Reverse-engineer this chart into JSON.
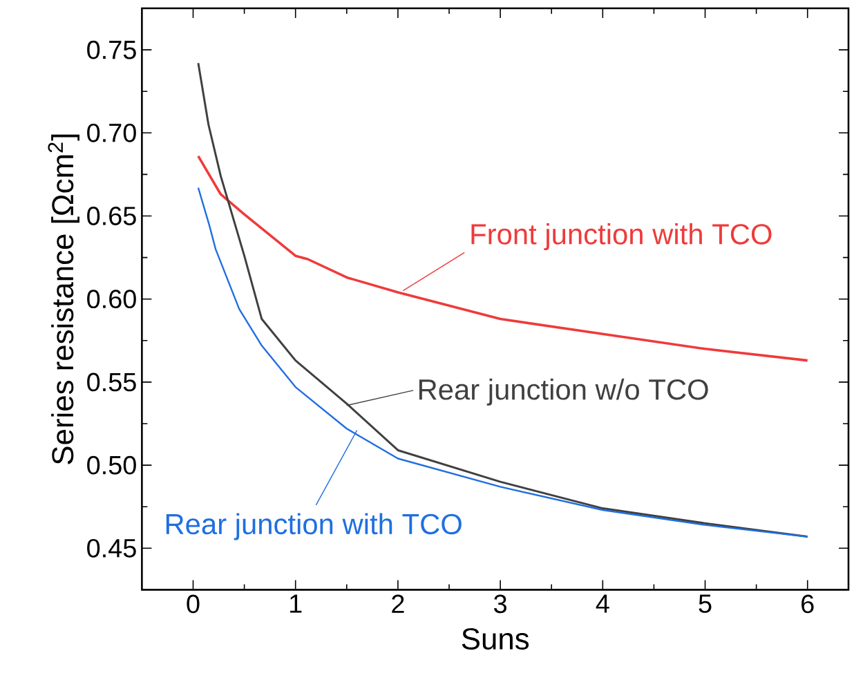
{
  "chart_data": {
    "type": "line",
    "xlabel": "Suns",
    "ylabel": "Series resistance [Ωcm$^{2}$]",
    "xlim": [
      -0.5,
      6.4
    ],
    "ylim": [
      0.425,
      0.775
    ],
    "xticks": [
      0,
      1,
      2,
      3,
      4,
      5,
      6
    ],
    "yticks": [
      0.45,
      {
        "value": 0.5,
        "label": "0.50"
      },
      0.55,
      {
        "value": 0.6,
        "label": "0.60"
      },
      0.65,
      {
        "value": 0.7,
        "label": "0.70"
      },
      0.75
    ],
    "marker": "none",
    "line_style": "solid",
    "series": [
      {
        "name": "Front junction with TCO",
        "color": "#ee3b3b",
        "x": [
          0.05,
          0.27,
          0.5,
          1,
          1.12,
          1.5,
          2,
          3,
          4,
          5,
          6
        ],
        "values": [
          0.686,
          0.663,
          0.651,
          0.626,
          0.624,
          0.613,
          0.604,
          0.588,
          0.579,
          0.57,
          0.563
        ]
      },
      {
        "name": "Rear junction w/o TCO",
        "color": "#404040",
        "x": [
          0.05,
          0.15,
          0.27,
          0.5,
          0.67,
          1,
          1.5,
          2,
          3,
          4,
          5,
          6
        ],
        "values": [
          0.742,
          0.705,
          0.674,
          0.626,
          0.588,
          0.563,
          0.537,
          0.509,
          0.49,
          0.474,
          0.465,
          0.457
        ]
      },
      {
        "name": "Rear junction with TCO",
        "color": "#1f6fe0",
        "x": [
          0.05,
          0.16,
          0.22,
          0.45,
          0.67,
          1,
          1.5,
          2,
          3,
          4,
          5,
          6
        ],
        "values": [
          0.667,
          0.644,
          0.63,
          0.594,
          0.572,
          0.547,
          0.522,
          0.504,
          0.487,
          0.473,
          0.464,
          0.457
        ]
      }
    ]
  }
}
